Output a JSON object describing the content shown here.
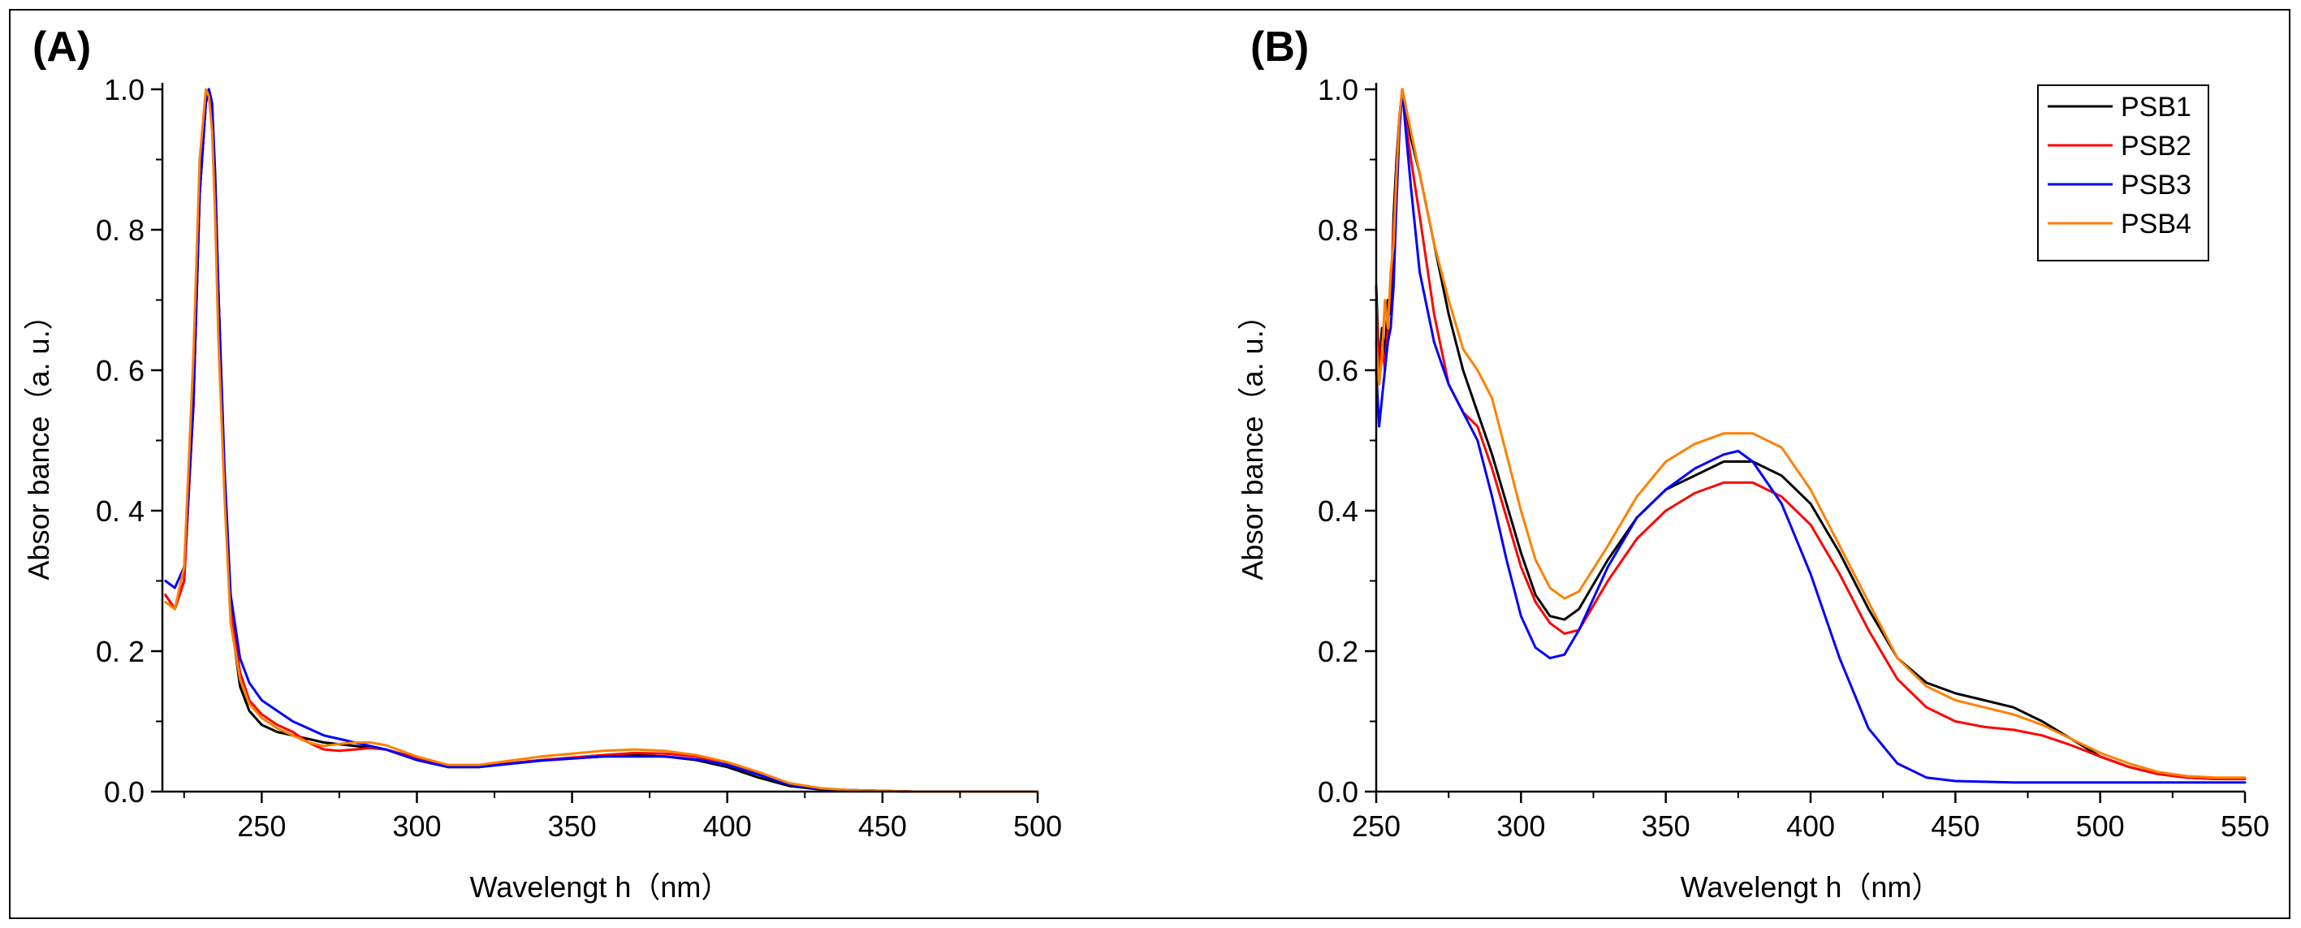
{
  "figure": {
    "panels": [
      "(A)",
      "(B)"
    ]
  },
  "colors": {
    "PSB1": "#000000",
    "PSB2": "#ff0000",
    "PSB3": "#0000ff",
    "PSB4": "#ff8000"
  },
  "chart_data": [
    {
      "type": "line",
      "panel": "(A)",
      "xlabel": "Wavelengt h（nm）",
      "ylabel": "Absor bance（a. u.）",
      "xlim": [
        218,
        500
      ],
      "ylim": [
        0,
        1.0
      ],
      "x_ticks": [
        250,
        300,
        350,
        400,
        450,
        500
      ],
      "y_ticks": [
        0.0,
        0.2,
        0.4,
        0.6,
        0.8,
        1.0
      ],
      "x_tick_labels": [
        "250",
        "300",
        "350",
        "400",
        "450",
        "500"
      ],
      "y_tick_labels": [
        "0.0",
        "0. 2",
        "0. 4",
        "0. 6",
        "0. 8",
        "1.0"
      ],
      "legend": "none",
      "series": [
        {
          "name": "PSB1",
          "x": [
            219,
            222,
            225,
            228,
            230,
            232,
            233,
            234,
            235,
            236,
            238,
            240,
            243,
            246,
            250,
            255,
            260,
            270,
            280,
            290,
            300,
            310,
            320,
            340,
            360,
            370,
            380,
            390,
            400,
            410,
            420,
            430,
            440,
            460,
            480,
            500
          ],
          "y": [
            0.28,
            0.26,
            0.3,
            0.55,
            0.85,
            0.98,
            1.0,
            0.98,
            0.88,
            0.72,
            0.45,
            0.25,
            0.15,
            0.115,
            0.095,
            0.085,
            0.08,
            0.07,
            0.065,
            0.06,
            0.045,
            0.035,
            0.035,
            0.045,
            0.05,
            0.052,
            0.05,
            0.045,
            0.035,
            0.02,
            0.008,
            0.003,
            0.002,
            0.0,
            0.0,
            0.0
          ]
        },
        {
          "name": "PSB2",
          "x": [
            219,
            222,
            225,
            228,
            230,
            232,
            233,
            234,
            235,
            236,
            238,
            240,
            243,
            246,
            250,
            255,
            260,
            265,
            270,
            275,
            280,
            285,
            290,
            300,
            310,
            320,
            340,
            360,
            370,
            380,
            390,
            400,
            410,
            420,
            430,
            440,
            460,
            480,
            500
          ],
          "y": [
            0.28,
            0.26,
            0.3,
            0.55,
            0.85,
            0.98,
            1.0,
            0.97,
            0.86,
            0.7,
            0.45,
            0.26,
            0.17,
            0.13,
            0.11,
            0.095,
            0.085,
            0.07,
            0.06,
            0.058,
            0.06,
            0.062,
            0.06,
            0.048,
            0.036,
            0.036,
            0.045,
            0.052,
            0.055,
            0.054,
            0.05,
            0.04,
            0.025,
            0.01,
            0.004,
            0.002,
            0.0,
            0.0,
            0.0
          ]
        },
        {
          "name": "PSB3",
          "x": [
            219,
            222,
            225,
            228,
            230,
            232,
            233,
            234,
            235,
            236,
            238,
            240,
            243,
            246,
            250,
            255,
            260,
            265,
            270,
            275,
            280,
            285,
            290,
            300,
            310,
            320,
            340,
            360,
            370,
            380,
            390,
            400,
            410,
            420,
            430,
            440,
            460,
            480,
            500
          ],
          "y": [
            0.3,
            0.29,
            0.32,
            0.55,
            0.85,
            0.98,
            1.0,
            0.98,
            0.87,
            0.72,
            0.46,
            0.28,
            0.19,
            0.155,
            0.13,
            0.115,
            0.1,
            0.09,
            0.08,
            0.075,
            0.07,
            0.065,
            0.06,
            0.045,
            0.035,
            0.035,
            0.044,
            0.05,
            0.05,
            0.05,
            0.046,
            0.038,
            0.024,
            0.01,
            0.004,
            0.002,
            0.0,
            0.0,
            0.0
          ]
        },
        {
          "name": "PSB4",
          "x": [
            219,
            222,
            225,
            228,
            230,
            232,
            233,
            234,
            235,
            236,
            238,
            240,
            243,
            246,
            250,
            255,
            260,
            265,
            270,
            275,
            280,
            285,
            290,
            300,
            310,
            320,
            340,
            360,
            370,
            380,
            390,
            400,
            410,
            420,
            430,
            440,
            460,
            480,
            500
          ],
          "y": [
            0.27,
            0.26,
            0.32,
            0.62,
            0.9,
            1.0,
            0.99,
            0.94,
            0.82,
            0.65,
            0.42,
            0.24,
            0.16,
            0.125,
            0.105,
            0.09,
            0.08,
            0.07,
            0.065,
            0.068,
            0.07,
            0.07,
            0.066,
            0.05,
            0.038,
            0.038,
            0.05,
            0.058,
            0.06,
            0.058,
            0.052,
            0.042,
            0.028,
            0.012,
            0.005,
            0.002,
            0.0,
            0.0,
            0.0
          ]
        }
      ]
    },
    {
      "type": "line",
      "panel": "(B)",
      "xlabel": "Wavelengt h（nm）",
      "ylabel": "Absor bance（a. u.）",
      "xlim": [
        250,
        550
      ],
      "ylim": [
        0,
        1.0
      ],
      "x_ticks": [
        250,
        300,
        350,
        400,
        450,
        500,
        550
      ],
      "y_ticks": [
        0.0,
        0.2,
        0.4,
        0.6,
        0.8,
        1.0
      ],
      "x_tick_labels": [
        "250",
        "300",
        "350",
        "400",
        "450",
        "500",
        "550"
      ],
      "y_tick_labels": [
        "0.0",
        "0.2",
        "0.4",
        "0.6",
        "0.8",
        "1.0"
      ],
      "legend": "top-right",
      "series": [
        {
          "name": "PSB1",
          "x": [
            250,
            251,
            252,
            253,
            254,
            255,
            256,
            257,
            258,
            259,
            260,
            262,
            265,
            270,
            275,
            280,
            285,
            290,
            295,
            300,
            305,
            310,
            315,
            320,
            330,
            340,
            350,
            360,
            370,
            380,
            390,
            400,
            410,
            420,
            430,
            440,
            450,
            460,
            470,
            480,
            490,
            500,
            510,
            520,
            530,
            540,
            550
          ],
          "y": [
            0.72,
            0.6,
            0.66,
            0.62,
            0.7,
            0.68,
            0.82,
            0.9,
            0.96,
            1.0,
            0.98,
            0.93,
            0.88,
            0.78,
            0.68,
            0.6,
            0.54,
            0.48,
            0.41,
            0.34,
            0.28,
            0.25,
            0.245,
            0.26,
            0.33,
            0.39,
            0.43,
            0.45,
            0.47,
            0.47,
            0.45,
            0.41,
            0.34,
            0.26,
            0.19,
            0.155,
            0.14,
            0.13,
            0.12,
            0.1,
            0.075,
            0.05,
            0.035,
            0.025,
            0.02,
            0.018,
            0.018
          ]
        },
        {
          "name": "PSB2",
          "x": [
            250,
            251,
            252,
            253,
            254,
            255,
            256,
            257,
            258,
            259,
            260,
            262,
            265,
            270,
            275,
            280,
            285,
            290,
            295,
            300,
            305,
            310,
            315,
            320,
            330,
            340,
            350,
            360,
            370,
            380,
            390,
            400,
            410,
            420,
            430,
            440,
            450,
            460,
            470,
            480,
            490,
            500,
            510,
            520,
            530,
            540,
            550
          ],
          "y": [
            0.7,
            0.58,
            0.64,
            0.6,
            0.66,
            0.72,
            0.8,
            0.88,
            0.96,
            1.0,
            0.96,
            0.9,
            0.82,
            0.68,
            0.58,
            0.54,
            0.52,
            0.46,
            0.39,
            0.32,
            0.27,
            0.24,
            0.225,
            0.23,
            0.3,
            0.36,
            0.4,
            0.425,
            0.44,
            0.44,
            0.42,
            0.38,
            0.31,
            0.23,
            0.16,
            0.12,
            0.1,
            0.092,
            0.088,
            0.08,
            0.066,
            0.05,
            0.035,
            0.025,
            0.02,
            0.018,
            0.018
          ]
        },
        {
          "name": "PSB3",
          "x": [
            250,
            251,
            252,
            253,
            254,
            255,
            256,
            257,
            258,
            259,
            260,
            262,
            265,
            270,
            275,
            280,
            285,
            290,
            295,
            300,
            305,
            310,
            315,
            320,
            330,
            340,
            350,
            360,
            370,
            375,
            380,
            390,
            400,
            410,
            420,
            430,
            440,
            450,
            460,
            470,
            480,
            490,
            500,
            520,
            550
          ],
          "y": [
            0.6,
            0.52,
            0.56,
            0.6,
            0.64,
            0.66,
            0.72,
            0.84,
            0.94,
            1.0,
            0.95,
            0.86,
            0.74,
            0.64,
            0.58,
            0.54,
            0.5,
            0.42,
            0.33,
            0.25,
            0.205,
            0.19,
            0.195,
            0.23,
            0.32,
            0.39,
            0.43,
            0.46,
            0.48,
            0.485,
            0.47,
            0.41,
            0.31,
            0.19,
            0.09,
            0.04,
            0.02,
            0.015,
            0.014,
            0.013,
            0.013,
            0.013,
            0.013,
            0.013,
            0.013
          ]
        },
        {
          "name": "PSB4",
          "x": [
            250,
            251,
            252,
            253,
            254,
            255,
            256,
            257,
            258,
            259,
            260,
            262,
            265,
            270,
            275,
            280,
            285,
            290,
            295,
            300,
            305,
            310,
            315,
            320,
            330,
            340,
            350,
            360,
            370,
            380,
            390,
            400,
            410,
            420,
            430,
            440,
            450,
            460,
            470,
            480,
            490,
            500,
            510,
            520,
            530,
            540,
            550
          ],
          "y": [
            0.64,
            0.58,
            0.62,
            0.7,
            0.66,
            0.74,
            0.78,
            0.88,
            0.96,
            1.0,
            0.98,
            0.94,
            0.88,
            0.78,
            0.7,
            0.63,
            0.6,
            0.56,
            0.48,
            0.4,
            0.33,
            0.29,
            0.275,
            0.285,
            0.35,
            0.42,
            0.47,
            0.495,
            0.51,
            0.51,
            0.49,
            0.43,
            0.35,
            0.27,
            0.19,
            0.15,
            0.13,
            0.12,
            0.11,
            0.095,
            0.075,
            0.055,
            0.04,
            0.028,
            0.022,
            0.02,
            0.02
          ]
        }
      ]
    }
  ]
}
